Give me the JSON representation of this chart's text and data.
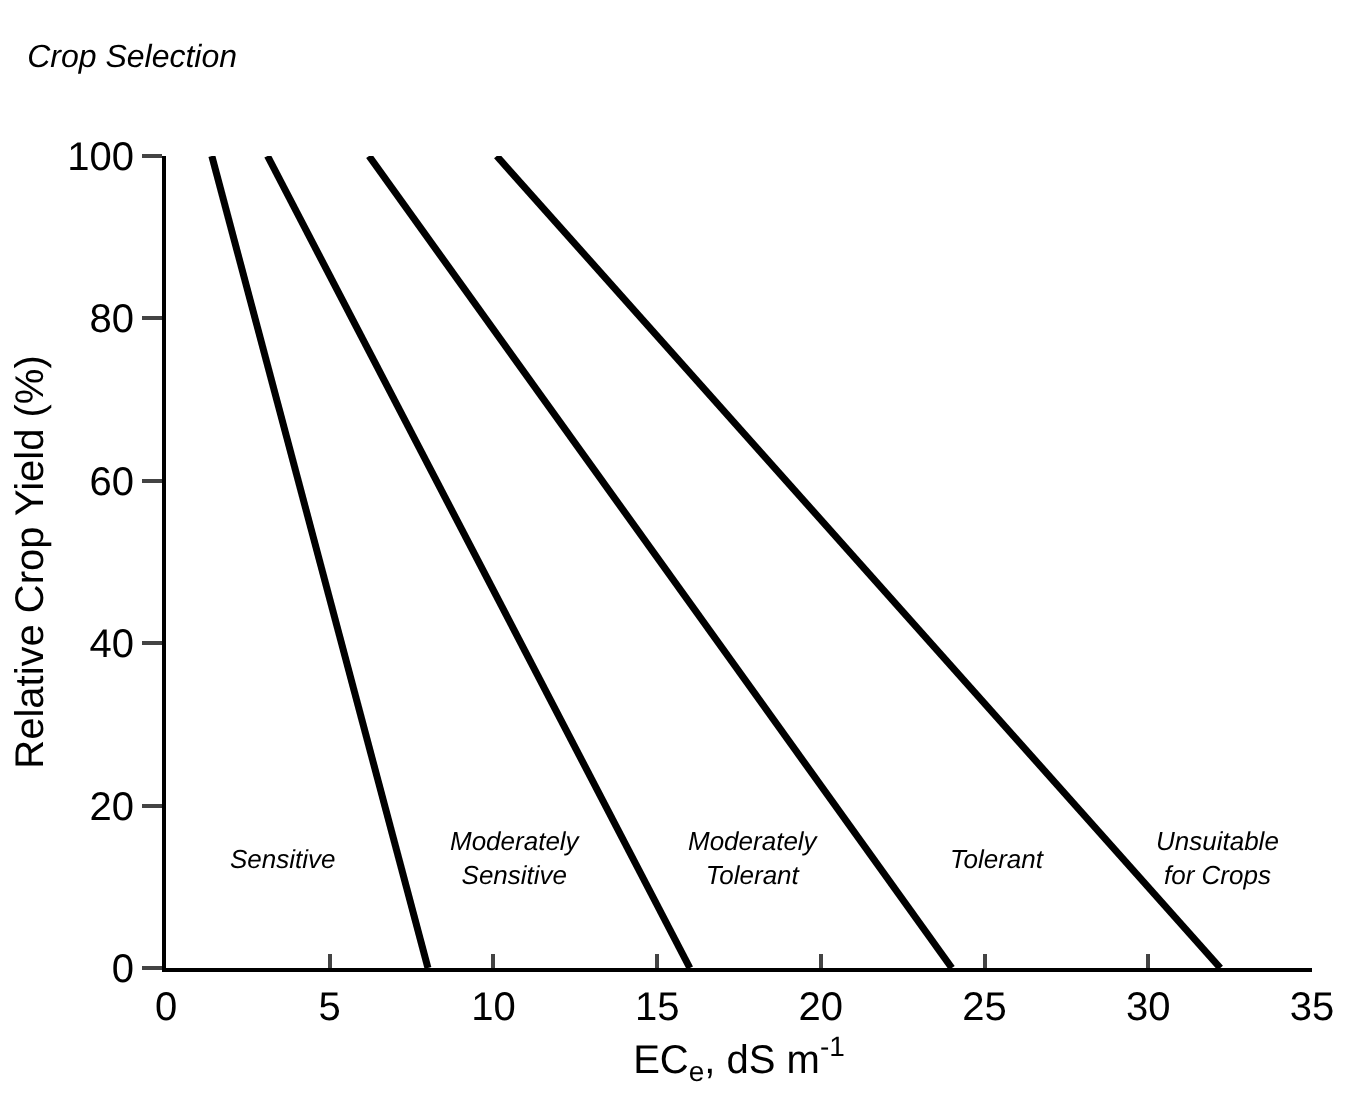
{
  "chart_data": {
    "type": "line",
    "title": "Crop Selection",
    "xlabel": "EC$_{e}$, dS m$^{-1}$",
    "ylabel": "Relative Crop Yield (%)",
    "series": [
      {
        "color": "#000000",
        "x": [
          1.4,
          8
        ],
        "values": [
          100,
          0
        ]
      },
      {
        "color": "#000000",
        "x": [
          3.1,
          16
        ],
        "values": [
          100,
          0
        ]
      },
      {
        "color": "#000000",
        "x": [
          6.2,
          24
        ],
        "values": [
          100,
          0
        ]
      },
      {
        "color": "#000000",
        "x": [
          10.1,
          32.2
        ],
        "values": [
          100,
          0
        ]
      }
    ],
    "xlim": [
      0,
      35
    ],
    "xticks": [
      0,
      5,
      10,
      15,
      20,
      25,
      30,
      35
    ],
    "ylim": [
      0,
      100
    ],
    "yticks": [
      0,
      20,
      40,
      60,
      80,
      100
    ],
    "grid": false,
    "marker": "none",
    "line_style": "solid",
    "annotations": [
      "Sensitive",
      "Moderately\nSensitive",
      "Moderately\nTolerant",
      "Tolerant",
      "Unsuitable\nfor Crops"
    ]
  }
}
